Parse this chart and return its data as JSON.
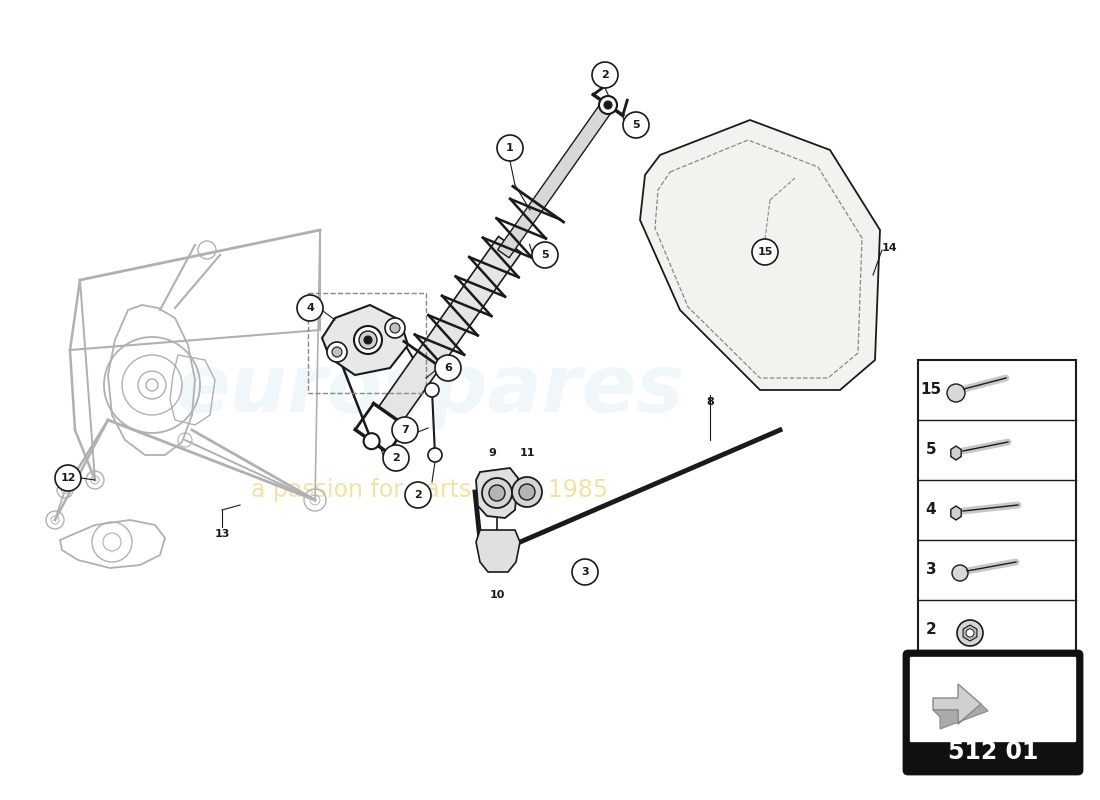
{
  "bg_color": "#ffffff",
  "part_code": "512 01",
  "watermark_line1": "eurospares",
  "watermark_line2": "a passion for parts since 1985",
  "legend_items": [
    {
      "num": 15
    },
    {
      "num": 5
    },
    {
      "num": 4
    },
    {
      "num": 3
    },
    {
      "num": 2
    }
  ],
  "diagram_color": "#1a1a1a",
  "light_gray": "#b0b0b0",
  "mid_gray": "#888888"
}
